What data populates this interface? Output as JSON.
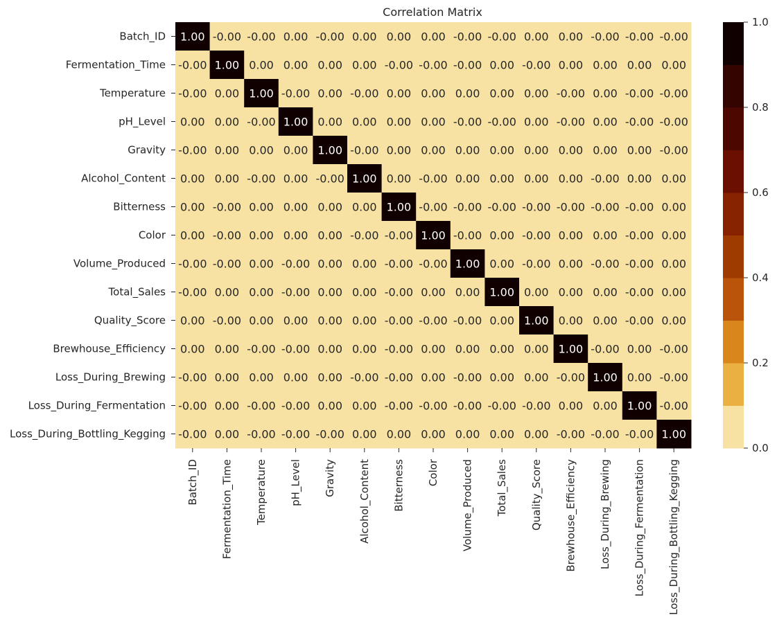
{
  "chart_data": {
    "type": "heatmap",
    "title": "Correlation Matrix",
    "row_labels": [
      "Batch_ID",
      "Fermentation_Time",
      "Temperature",
      "pH_Level",
      "Gravity",
      "Alcohol_Content",
      "Bitterness",
      "Color",
      "Volume_Produced",
      "Total_Sales",
      "Quality_Score",
      "Brewhouse_Efficiency",
      "Loss_During_Brewing",
      "Loss_During_Fermentation",
      "Loss_During_Bottling_Kegging"
    ],
    "col_labels": [
      "Batch_ID",
      "Fermentation_Time",
      "Temperature",
      "pH_Level",
      "Gravity",
      "Alcohol_Content",
      "Bitterness",
      "Color",
      "Volume_Produced",
      "Total_Sales",
      "Quality_Score",
      "Brewhouse_Efficiency",
      "Loss_During_Brewing",
      "Loss_During_Fermentation",
      "Loss_During_Bottling_Kegging"
    ],
    "annotations": [
      [
        "1.00",
        "-0.00",
        "-0.00",
        "0.00",
        "-0.00",
        "0.00",
        "0.00",
        "0.00",
        "-0.00",
        "-0.00",
        "0.00",
        "0.00",
        "-0.00",
        "-0.00",
        "-0.00"
      ],
      [
        "-0.00",
        "1.00",
        "0.00",
        "0.00",
        "0.00",
        "0.00",
        "-0.00",
        "-0.00",
        "-0.00",
        "0.00",
        "-0.00",
        "0.00",
        "0.00",
        "0.00",
        "0.00"
      ],
      [
        "-0.00",
        "0.00",
        "1.00",
        "-0.00",
        "0.00",
        "-0.00",
        "0.00",
        "0.00",
        "0.00",
        "0.00",
        "0.00",
        "-0.00",
        "0.00",
        "-0.00",
        "-0.00"
      ],
      [
        "0.00",
        "0.00",
        "-0.00",
        "1.00",
        "0.00",
        "0.00",
        "0.00",
        "0.00",
        "-0.00",
        "-0.00",
        "0.00",
        "-0.00",
        "0.00",
        "-0.00",
        "-0.00"
      ],
      [
        "-0.00",
        "0.00",
        "0.00",
        "0.00",
        "1.00",
        "-0.00",
        "0.00",
        "0.00",
        "0.00",
        "0.00",
        "0.00",
        "0.00",
        "0.00",
        "0.00",
        "-0.00"
      ],
      [
        "0.00",
        "0.00",
        "-0.00",
        "0.00",
        "-0.00",
        "1.00",
        "0.00",
        "-0.00",
        "0.00",
        "0.00",
        "0.00",
        "0.00",
        "-0.00",
        "0.00",
        "0.00"
      ],
      [
        "0.00",
        "-0.00",
        "0.00",
        "0.00",
        "0.00",
        "0.00",
        "1.00",
        "-0.00",
        "-0.00",
        "-0.00",
        "-0.00",
        "-0.00",
        "-0.00",
        "-0.00",
        "0.00"
      ],
      [
        "0.00",
        "-0.00",
        "0.00",
        "0.00",
        "0.00",
        "-0.00",
        "-0.00",
        "1.00",
        "-0.00",
        "0.00",
        "-0.00",
        "0.00",
        "0.00",
        "-0.00",
        "0.00"
      ],
      [
        "-0.00",
        "-0.00",
        "0.00",
        "-0.00",
        "0.00",
        "0.00",
        "-0.00",
        "-0.00",
        "1.00",
        "0.00",
        "-0.00",
        "0.00",
        "-0.00",
        "-0.00",
        "0.00"
      ],
      [
        "-0.00",
        "0.00",
        "0.00",
        "-0.00",
        "0.00",
        "0.00",
        "-0.00",
        "0.00",
        "0.00",
        "1.00",
        "0.00",
        "0.00",
        "0.00",
        "-0.00",
        "0.00"
      ],
      [
        "0.00",
        "-0.00",
        "0.00",
        "0.00",
        "0.00",
        "0.00",
        "-0.00",
        "-0.00",
        "-0.00",
        "0.00",
        "1.00",
        "0.00",
        "0.00",
        "-0.00",
        "0.00"
      ],
      [
        "0.00",
        "0.00",
        "-0.00",
        "-0.00",
        "0.00",
        "0.00",
        "-0.00",
        "0.00",
        "0.00",
        "0.00",
        "0.00",
        "1.00",
        "-0.00",
        "0.00",
        "-0.00"
      ],
      [
        "-0.00",
        "0.00",
        "0.00",
        "0.00",
        "0.00",
        "-0.00",
        "-0.00",
        "0.00",
        "-0.00",
        "0.00",
        "0.00",
        "-0.00",
        "1.00",
        "0.00",
        "-0.00"
      ],
      [
        "-0.00",
        "0.00",
        "-0.00",
        "-0.00",
        "0.00",
        "0.00",
        "-0.00",
        "-0.00",
        "-0.00",
        "-0.00",
        "-0.00",
        "0.00",
        "0.00",
        "1.00",
        "-0.00"
      ],
      [
        "-0.00",
        "0.00",
        "-0.00",
        "-0.00",
        "-0.00",
        "0.00",
        "0.00",
        "0.00",
        "0.00",
        "0.00",
        "0.00",
        "-0.00",
        "-0.00",
        "-0.00",
        "1.00"
      ]
    ],
    "colorbar": {
      "ticks": [
        "0.0",
        "0.2",
        "0.4",
        "0.6",
        "0.8",
        "1.0"
      ],
      "range": [
        0,
        1
      ],
      "colors": [
        "#f7e2a3",
        "#eab042",
        "#d9861c",
        "#b9540a",
        "#9e3b00",
        "#862200",
        "#6b1000",
        "#4c0700",
        "#330400",
        "#100000"
      ]
    },
    "grid": false,
    "legend": "colorbar-right"
  }
}
